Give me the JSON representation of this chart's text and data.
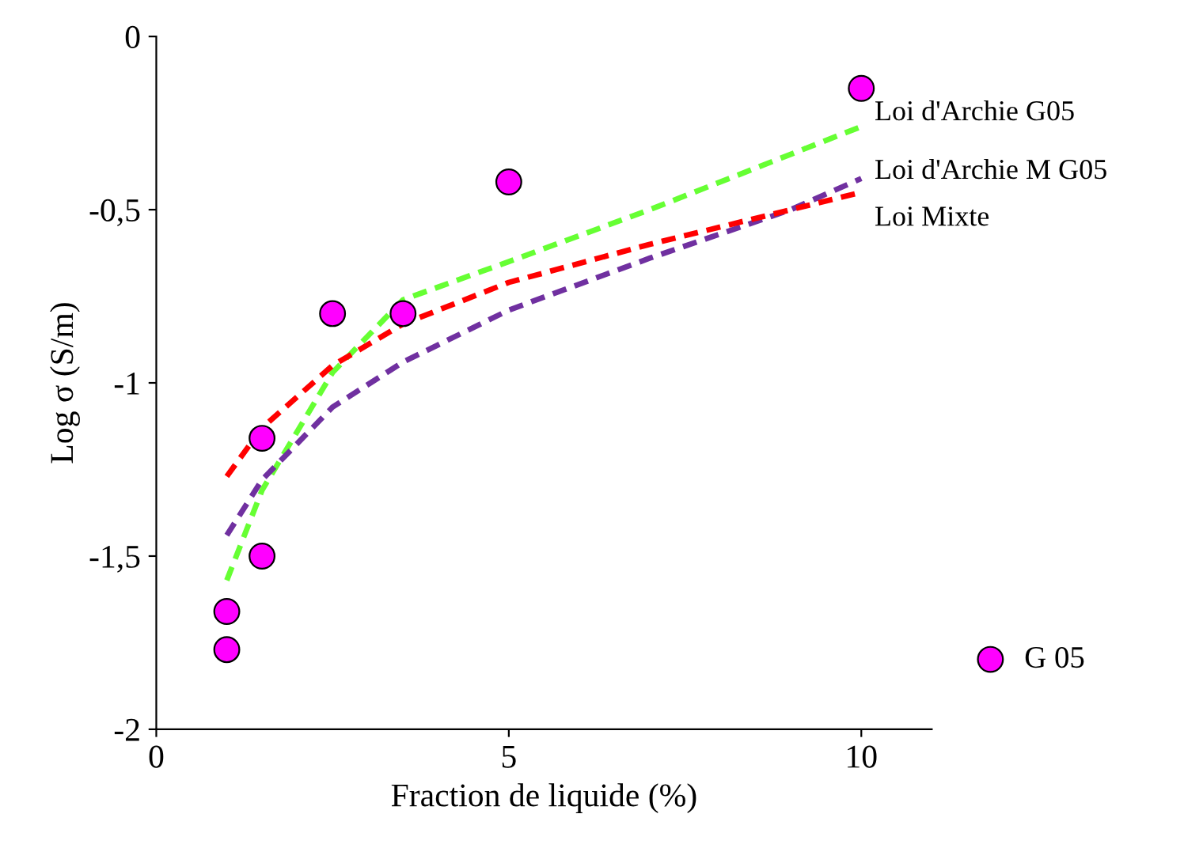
{
  "chart_data": {
    "type": "line",
    "xlabel": "Fraction de liquide (%)",
    "ylabel": "Log σ (S/m)",
    "xlim": [
      0,
      11
    ],
    "xticks": [
      0,
      5,
      10
    ],
    "ylim": [
      -2,
      0
    ],
    "yticks": [
      {
        "value": -2,
        "label": "-2"
      },
      {
        "value": -1.5,
        "label": "-1,5"
      },
      {
        "value": -1,
        "label": "-1"
      },
      {
        "value": -0.5,
        "label": "-0,5"
      },
      {
        "value": 0,
        "label": "0"
      }
    ],
    "grid": false,
    "legend": "right",
    "series": [
      {
        "name": "Loi d'Archie G05",
        "line_style": "dashed",
        "color": "#66ff33",
        "x": [
          1,
          1.5,
          2.5,
          3.5,
          5,
          7,
          10
        ],
        "values": [
          -1.57,
          -1.31,
          -0.97,
          -0.76,
          -0.65,
          -0.5,
          -0.26
        ]
      },
      {
        "name": "Loi d'Archie M G05",
        "line_style": "dashed",
        "color": "#7030a0",
        "x": [
          1,
          1.5,
          2.5,
          3.5,
          5,
          7,
          9,
          10
        ],
        "values": [
          -1.44,
          -1.28,
          -1.07,
          -0.94,
          -0.79,
          -0.64,
          -0.5,
          -0.41
        ]
      },
      {
        "name": "Loi Mixte",
        "line_style": "dashed",
        "color": "#ff0000",
        "x": [
          1,
          1.5,
          2.5,
          3.5,
          5,
          7,
          9,
          10
        ],
        "values": [
          -1.27,
          -1.13,
          -0.95,
          -0.83,
          -0.71,
          -0.6,
          -0.5,
          -0.45
        ]
      },
      {
        "name": "G 05",
        "type": "scatter",
        "marker": "circle",
        "color": "#ff00ff",
        "x": [
          1,
          1,
          1.5,
          1.5,
          2.5,
          3.5,
          5,
          10
        ],
        "values": [
          -1.66,
          -1.77,
          -1.16,
          -1.5,
          -0.8,
          -0.8,
          -0.42,
          -0.15
        ]
      }
    ]
  }
}
